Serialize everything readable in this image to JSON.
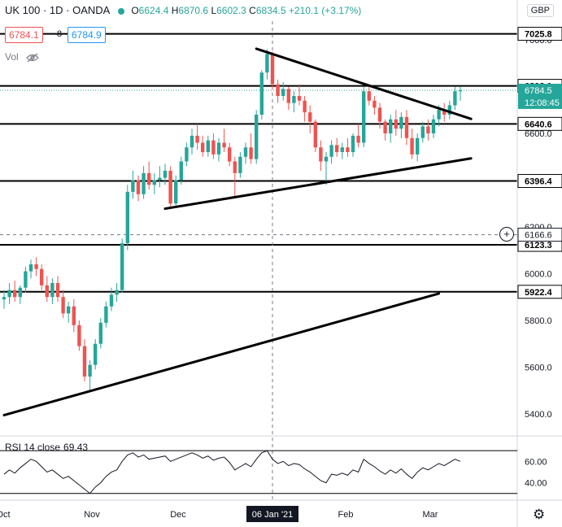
{
  "header": {
    "symbol": "UK 100 · 1D · OANDA",
    "open_label": "O",
    "open": "6624.4",
    "high_label": "H",
    "high": "6870.6",
    "low_label": "L",
    "low": "6602.3",
    "close_label": "C",
    "close": "6834.5",
    "change": "+210.1 (+3.17%)",
    "status_color": "#26a69a"
  },
  "quote": {
    "bid": "6784.1",
    "spread": "8",
    "ask": "6784.9"
  },
  "volume_label": "Vol",
  "volume_icon": "eye-off-icon",
  "currency": "GBP",
  "chart_data": {
    "type": "candlestick",
    "x_tick_labels": [
      "Oct",
      "Nov",
      "Dec",
      "Feb",
      "Mar"
    ],
    "crosshair_x_label": "06 Jan '21",
    "y_ticks": [
      5400,
      5600,
      5800,
      6000,
      6200,
      6400,
      6600,
      6800,
      7000
    ],
    "y_tick_labels": [
      "5400.0",
      "5600.0",
      "5800.0",
      "6000.0",
      "6200.0",
      "6400.0",
      "6600.0",
      "6800.0",
      "7000.0"
    ],
    "ylim": [
      5320,
      7080
    ],
    "grid": false,
    "up_color": "#26a69a",
    "down_color": "#ef5350",
    "last_price": 6784.5,
    "last_price_label": "6784.5",
    "countdown": "12:08:45",
    "crosshair_price": 6166.6,
    "crosshair_price_label": "6166.6",
    "levels": [
      {
        "value": 7025.8,
        "label": "7025.8"
      },
      {
        "value": 6803.1,
        "label": "6803.1"
      },
      {
        "value": 6640.6,
        "label": "6640.6"
      },
      {
        "value": 6396.4,
        "label": "6396.4"
      },
      {
        "value": 6123.3,
        "label": "6123.3"
      },
      {
        "value": 5922.4,
        "label": "5922.4"
      }
    ],
    "trendlines": [
      {
        "from": [
          47,
          6962
        ],
        "to": [
          87,
          6662
        ]
      },
      {
        "from": [
          30,
          6278
        ],
        "to": [
          87,
          6493
        ]
      },
      {
        "from": [
          0,
          5395
        ],
        "to": [
          81,
          5915
        ]
      }
    ],
    "candles": [
      [
        5890,
        5930,
        5850,
        5900
      ],
      [
        5900,
        5960,
        5870,
        5930
      ],
      [
        5930,
        5970,
        5880,
        5900
      ],
      [
        5900,
        5950,
        5870,
        5940
      ],
      [
        5940,
        6030,
        5920,
        6010
      ],
      [
        6010,
        6060,
        5980,
        6040
      ],
      [
        6040,
        6070,
        5990,
        6020
      ],
      [
        6020,
        6040,
        5930,
        5950
      ],
      [
        5950,
        5990,
        5880,
        5900
      ],
      [
        5900,
        5980,
        5870,
        5960
      ],
      [
        5960,
        5990,
        5880,
        5900
      ],
      [
        5900,
        5930,
        5810,
        5830
      ],
      [
        5830,
        5880,
        5790,
        5860
      ],
      [
        5860,
        5890,
        5750,
        5780
      ],
      [
        5780,
        5800,
        5670,
        5690
      ],
      [
        5690,
        5720,
        5540,
        5560
      ],
      [
        5560,
        5630,
        5500,
        5610
      ],
      [
        5610,
        5720,
        5590,
        5700
      ],
      [
        5700,
        5810,
        5680,
        5790
      ],
      [
        5790,
        5880,
        5770,
        5860
      ],
      [
        5860,
        5940,
        5840,
        5910
      ],
      [
        5910,
        5960,
        5880,
        5930
      ],
      [
        5930,
        6150,
        5920,
        6130
      ],
      [
        6130,
        6380,
        6100,
        6350
      ],
      [
        6350,
        6440,
        6320,
        6400
      ],
      [
        6400,
        6420,
        6310,
        6340
      ],
      [
        6340,
        6460,
        6320,
        6430
      ],
      [
        6430,
        6480,
        6360,
        6380
      ],
      [
        6380,
        6430,
        6340,
        6400
      ],
      [
        6400,
        6460,
        6370,
        6410
      ],
      [
        6410,
        6470,
        6380,
        6440
      ],
      [
        6440,
        6460,
        6280,
        6300
      ],
      [
        6300,
        6420,
        6280,
        6400
      ],
      [
        6400,
        6500,
        6380,
        6480
      ],
      [
        6480,
        6560,
        6460,
        6540
      ],
      [
        6540,
        6620,
        6510,
        6590
      ],
      [
        6590,
        6640,
        6530,
        6560
      ],
      [
        6560,
        6590,
        6500,
        6520
      ],
      [
        6520,
        6590,
        6500,
        6570
      ],
      [
        6570,
        6600,
        6490,
        6510
      ],
      [
        6510,
        6580,
        6480,
        6560
      ],
      [
        6560,
        6620,
        6520,
        6540
      ],
      [
        6540,
        6560,
        6460,
        6480
      ],
      [
        6480,
        6500,
        6330,
        6430
      ],
      [
        6430,
        6520,
        6410,
        6500
      ],
      [
        6500,
        6560,
        6470,
        6540
      ],
      [
        6540,
        6600,
        6470,
        6490
      ],
      [
        6490,
        6700,
        6470,
        6680
      ],
      [
        6680,
        6870,
        6660,
        6860
      ],
      [
        6860,
        6960,
        6830,
        6940
      ],
      [
        6940,
        6950,
        6790,
        6810
      ],
      [
        6810,
        6830,
        6730,
        6760
      ],
      [
        6760,
        6820,
        6740,
        6790
      ],
      [
        6790,
        6800,
        6700,
        6730
      ],
      [
        6730,
        6780,
        6690,
        6760
      ],
      [
        6760,
        6810,
        6720,
        6740
      ],
      [
        6740,
        6760,
        6650,
        6690
      ],
      [
        6690,
        6720,
        6600,
        6650
      ],
      [
        6650,
        6660,
        6520,
        6540
      ],
      [
        6540,
        6570,
        6440,
        6480
      ],
      [
        6480,
        6520,
        6380,
        6500
      ],
      [
        6500,
        6570,
        6470,
        6550
      ],
      [
        6550,
        6580,
        6500,
        6520
      ],
      [
        6520,
        6560,
        6490,
        6540
      ],
      [
        6540,
        6580,
        6500,
        6520
      ],
      [
        6520,
        6600,
        6500,
        6590
      ],
      [
        6590,
        6640,
        6540,
        6560
      ],
      [
        6560,
        6800,
        6540,
        6780
      ],
      [
        6780,
        6810,
        6720,
        6740
      ],
      [
        6740,
        6760,
        6680,
        6710
      ],
      [
        6710,
        6730,
        6620,
        6650
      ],
      [
        6650,
        6660,
        6570,
        6600
      ],
      [
        6600,
        6680,
        6560,
        6660
      ],
      [
        6660,
        6700,
        6590,
        6620
      ],
      [
        6620,
        6690,
        6580,
        6670
      ],
      [
        6670,
        6700,
        6550,
        6580
      ],
      [
        6580,
        6620,
        6490,
        6510
      ],
      [
        6510,
        6600,
        6480,
        6580
      ],
      [
        6580,
        6650,
        6560,
        6630
      ],
      [
        6630,
        6660,
        6570,
        6600
      ],
      [
        6600,
        6680,
        6580,
        6660
      ],
      [
        6660,
        6720,
        6630,
        6700
      ],
      [
        6700,
        6730,
        6650,
        6680
      ],
      [
        6680,
        6740,
        6660,
        6720
      ],
      [
        6720,
        6800,
        6700,
        6780
      ],
      [
        6780,
        6800,
        6740,
        6784
      ]
    ],
    "rsi": {
      "label": "RSI 14 close",
      "value": "69.43",
      "ylim": [
        26,
        80
      ],
      "upper": 70,
      "lower": 30,
      "tick_labels": [
        "60.00",
        "40.00"
      ],
      "tick_values": [
        60,
        40
      ],
      "values": [
        48,
        52,
        49,
        54,
        58,
        62,
        60,
        55,
        50,
        52,
        48,
        44,
        46,
        42,
        38,
        34,
        30,
        36,
        40,
        46,
        50,
        52,
        60,
        66,
        68,
        64,
        66,
        62,
        63,
        64,
        65,
        60,
        62,
        64,
        66,
        68,
        66,
        63,
        65,
        61,
        63,
        64,
        59,
        52,
        55,
        58,
        55,
        62,
        68,
        70,
        62,
        58,
        60,
        56,
        58,
        57,
        53,
        50,
        46,
        42,
        40,
        48,
        47,
        49,
        47,
        52,
        50,
        62,
        58,
        55,
        51,
        48,
        52,
        49,
        53,
        48,
        44,
        50,
        54,
        52,
        55,
        58,
        56,
        59,
        62,
        60
      ]
    }
  }
}
